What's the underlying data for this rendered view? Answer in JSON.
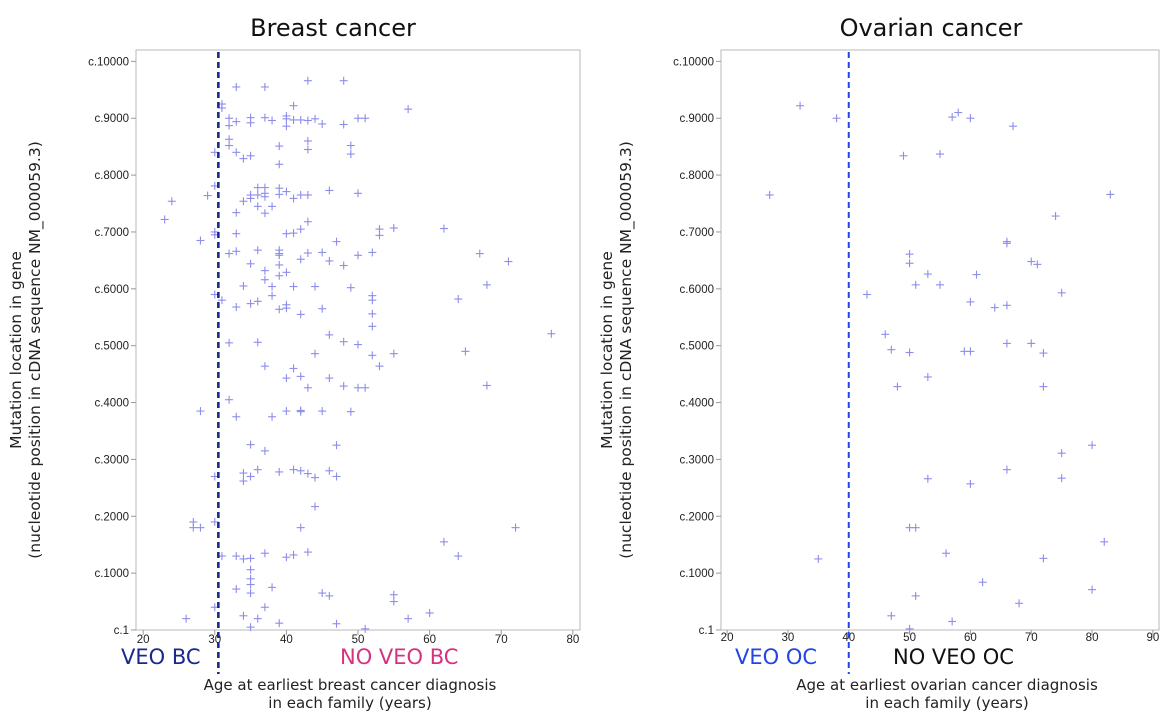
{
  "chart_data": [
    {
      "type": "scatter",
      "title": "Breast cancer",
      "ylabel_line1": "Mutation location in gene",
      "ylabel_line2": "(nucleotide position in cDNA sequence NM_000059.3)",
      "xlabel_line1": "Age at earliest breast cancer diagnosis",
      "xlabel_line2": "in each family (years)",
      "xlim": [
        19,
        81
      ],
      "ylim": [
        0,
        10200
      ],
      "xticks": [
        20,
        30,
        40,
        50,
        60,
        70,
        80
      ],
      "xtick_labels": [
        "20",
        "30",
        "40",
        "50",
        "60",
        "70",
        "80"
      ],
      "yticks": [
        1,
        1000,
        2000,
        3000,
        4000,
        5000,
        6000,
        7000,
        8000,
        9000,
        10000
      ],
      "ytick_labels": [
        "c.1",
        "c.1000",
        "c.2000",
        "c.3000",
        "c.4000",
        "c.5000",
        "c.6000",
        "c.7000",
        "c.8000",
        "c.9000",
        "c.10000"
      ],
      "threshold": 30.5,
      "threshold_color": "#1a2a8c",
      "left_region_label": "VEO BC",
      "left_region_color": "#1a2a8c",
      "right_region_label": "NO VEO BC",
      "right_region_color": "#d6337f",
      "marker_color": "#8d8dec",
      "points": [
        [
          23,
          7220
        ],
        [
          24,
          7540
        ],
        [
          26,
          200
        ],
        [
          27,
          1800
        ],
        [
          27,
          1900
        ],
        [
          28,
          3850
        ],
        [
          28,
          6850
        ],
        [
          28,
          1800
        ],
        [
          29,
          7640
        ],
        [
          30,
          8400
        ],
        [
          30,
          7000
        ],
        [
          30,
          6950
        ],
        [
          30,
          7810
        ],
        [
          30,
          5900
        ],
        [
          30,
          2700
        ],
        [
          30,
          1900
        ],
        [
          30,
          400
        ],
        [
          31,
          9250
        ],
        [
          31,
          9180
        ],
        [
          31,
          5800
        ],
        [
          31,
          1300
        ],
        [
          32,
          8870
        ],
        [
          32,
          8630
        ],
        [
          32,
          9000
        ],
        [
          32,
          8520
        ],
        [
          32,
          6620
        ],
        [
          32,
          5050
        ],
        [
          32,
          4050
        ],
        [
          33,
          9550
        ],
        [
          33,
          8940
        ],
        [
          33,
          8400
        ],
        [
          33,
          7340
        ],
        [
          33,
          6660
        ],
        [
          33,
          6970
        ],
        [
          33,
          5680
        ],
        [
          33,
          3750
        ],
        [
          33,
          1300
        ],
        [
          33,
          720
        ],
        [
          34,
          8290
        ],
        [
          34,
          7540
        ],
        [
          34,
          6050
        ],
        [
          34,
          2760
        ],
        [
          34,
          2620
        ],
        [
          34,
          1250
        ],
        [
          34,
          250
        ],
        [
          35,
          9010
        ],
        [
          35,
          8920
        ],
        [
          35,
          8340
        ],
        [
          35,
          7650
        ],
        [
          35,
          7590
        ],
        [
          35,
          6440
        ],
        [
          35,
          5740
        ],
        [
          35,
          3260
        ],
        [
          35,
          2700
        ],
        [
          35,
          1260
        ],
        [
          35,
          1060
        ],
        [
          35,
          900
        ],
        [
          35,
          800
        ],
        [
          35,
          650
        ],
        [
          35,
          50
        ],
        [
          36,
          7650
        ],
        [
          36,
          7780
        ],
        [
          36,
          7450
        ],
        [
          36,
          6680
        ],
        [
          36,
          5780
        ],
        [
          36,
          5060
        ],
        [
          36,
          2820
        ],
        [
          36,
          200
        ],
        [
          37,
          9550
        ],
        [
          37,
          9010
        ],
        [
          37,
          7780
        ],
        [
          37,
          7680
        ],
        [
          37,
          7620
        ],
        [
          37,
          7330
        ],
        [
          37,
          6320
        ],
        [
          37,
          6160
        ],
        [
          37,
          4640
        ],
        [
          37,
          3150
        ],
        [
          37,
          1350
        ],
        [
          37,
          400
        ],
        [
          38,
          8960
        ],
        [
          38,
          7450
        ],
        [
          38,
          6040
        ],
        [
          38,
          5880
        ],
        [
          38,
          3750
        ],
        [
          38,
          750
        ],
        [
          39,
          8510
        ],
        [
          39,
          8190
        ],
        [
          39,
          7770
        ],
        [
          39,
          7660
        ],
        [
          39,
          6680
        ],
        [
          39,
          6620
        ],
        [
          39,
          6590
        ],
        [
          39,
          6420
        ],
        [
          39,
          6230
        ],
        [
          39,
          5640
        ],
        [
          39,
          2780
        ],
        [
          39,
          120
        ],
        [
          40,
          9040
        ],
        [
          40,
          8990
        ],
        [
          40,
          8860
        ],
        [
          40,
          7710
        ],
        [
          40,
          6970
        ],
        [
          40,
          6290
        ],
        [
          40,
          5720
        ],
        [
          40,
          5660
        ],
        [
          40,
          4430
        ],
        [
          40,
          3850
        ],
        [
          40,
          1280
        ],
        [
          41,
          9220
        ],
        [
          41,
          8970
        ],
        [
          41,
          7590
        ],
        [
          41,
          6980
        ],
        [
          41,
          6040
        ],
        [
          41,
          4600
        ],
        [
          41,
          2820
        ],
        [
          41,
          1320
        ],
        [
          42,
          8970
        ],
        [
          42,
          7650
        ],
        [
          42,
          7050
        ],
        [
          42,
          6520
        ],
        [
          42,
          5550
        ],
        [
          42,
          4460
        ],
        [
          42,
          3860
        ],
        [
          42,
          3840
        ],
        [
          42,
          2800
        ],
        [
          42,
          1800
        ],
        [
          43,
          9660
        ],
        [
          43,
          8960
        ],
        [
          43,
          8600
        ],
        [
          43,
          8450
        ],
        [
          43,
          7650
        ],
        [
          43,
          7180
        ],
        [
          43,
          6630
        ],
        [
          43,
          4260
        ],
        [
          43,
          2750
        ],
        [
          43,
          1370
        ],
        [
          44,
          8990
        ],
        [
          44,
          6040
        ],
        [
          44,
          4860
        ],
        [
          44,
          2680
        ],
        [
          44,
          2170
        ],
        [
          45,
          8900
        ],
        [
          45,
          6640
        ],
        [
          45,
          5650
        ],
        [
          45,
          3850
        ],
        [
          45,
          650
        ],
        [
          46,
          7730
        ],
        [
          46,
          6490
        ],
        [
          46,
          5190
        ],
        [
          46,
          4430
        ],
        [
          46,
          2800
        ],
        [
          46,
          600
        ],
        [
          47,
          6830
        ],
        [
          47,
          3250
        ],
        [
          47,
          2700
        ],
        [
          47,
          110
        ],
        [
          48,
          9660
        ],
        [
          48,
          8890
        ],
        [
          48,
          6410
        ],
        [
          48,
          5070
        ],
        [
          48,
          4290
        ],
        [
          49,
          8520
        ],
        [
          49,
          8370
        ],
        [
          49,
          6020
        ],
        [
          49,
          3840
        ],
        [
          50,
          9000
        ],
        [
          50,
          7680
        ],
        [
          50,
          6590
        ],
        [
          50,
          5020
        ],
        [
          50,
          4260
        ],
        [
          51,
          9000
        ],
        [
          51,
          4260
        ],
        [
          51,
          20
        ],
        [
          52,
          6640
        ],
        [
          52,
          5880
        ],
        [
          52,
          5800
        ],
        [
          52,
          5560
        ],
        [
          52,
          5340
        ],
        [
          52,
          4830
        ],
        [
          53,
          7050
        ],
        [
          53,
          6940
        ],
        [
          53,
          4640
        ],
        [
          55,
          7070
        ],
        [
          55,
          4860
        ],
        [
          55,
          620
        ],
        [
          55,
          500
        ],
        [
          57,
          9160
        ],
        [
          57,
          200
        ],
        [
          60,
          300
        ],
        [
          62,
          7060
        ],
        [
          62,
          1550
        ],
        [
          64,
          5820
        ],
        [
          64,
          1300
        ],
        [
          65,
          4900
        ],
        [
          67,
          6620
        ],
        [
          68,
          6070
        ],
        [
          68,
          4300
        ],
        [
          71,
          6480
        ],
        [
          72,
          1800
        ],
        [
          77,
          5210
        ]
      ]
    },
    {
      "type": "scatter",
      "title": "Ovarian cancer",
      "ylabel_line1": "Mutation location in gene",
      "ylabel_line2": "(nucleotide position in cDNA sequence NM_000059.3)",
      "xlabel_line1": "Age at earliest ovarian cancer diagnosis",
      "xlabel_line2": "in each family (years)",
      "xlim": [
        19,
        91
      ],
      "ylim": [
        0,
        10200
      ],
      "xticks": [
        20,
        30,
        40,
        50,
        60,
        70,
        80,
        90
      ],
      "xtick_labels": [
        "20",
        "30",
        "40",
        "50",
        "60",
        "70",
        "80",
        "90"
      ],
      "yticks": [
        1,
        1000,
        2000,
        3000,
        4000,
        5000,
        6000,
        7000,
        8000,
        9000,
        10000
      ],
      "ytick_labels": [
        "c.1",
        "c.1000",
        "c.2000",
        "c.3000",
        "c.4000",
        "c.5000",
        "c.6000",
        "c.7000",
        "c.8000",
        "c.9000",
        "c.10000"
      ],
      "threshold": 40,
      "threshold_color": "#2345e0",
      "left_region_label": "VEO OC",
      "left_region_color": "#2345e0",
      "right_region_label": "NO VEO OC",
      "right_region_color": "#111111",
      "marker_color": "#8d8dec",
      "points": [
        [
          27,
          7650
        ],
        [
          32,
          9220
        ],
        [
          35,
          1250
        ],
        [
          38,
          9000
        ],
        [
          43,
          5900
        ],
        [
          46,
          5200
        ],
        [
          47,
          4930
        ],
        [
          47,
          250
        ],
        [
          48,
          4280
        ],
        [
          49,
          8340
        ],
        [
          50,
          6610
        ],
        [
          50,
          6450
        ],
        [
          50,
          4880
        ],
        [
          50,
          1800
        ],
        [
          50,
          20
        ],
        [
          51,
          6070
        ],
        [
          51,
          1800
        ],
        [
          51,
          600
        ],
        [
          53,
          6260
        ],
        [
          53,
          4450
        ],
        [
          53,
          2660
        ],
        [
          55,
          8370
        ],
        [
          55,
          6070
        ],
        [
          56,
          1350
        ],
        [
          57,
          9020
        ],
        [
          57,
          150
        ],
        [
          58,
          9100
        ],
        [
          59,
          4900
        ],
        [
          60,
          9000
        ],
        [
          60,
          5770
        ],
        [
          60,
          4900
        ],
        [
          60,
          2570
        ],
        [
          61,
          6250
        ],
        [
          62,
          840
        ],
        [
          64,
          5670
        ],
        [
          66,
          6830
        ],
        [
          66,
          6800
        ],
        [
          66,
          5710
        ],
        [
          66,
          5040
        ],
        [
          66,
          2820
        ],
        [
          67,
          8860
        ],
        [
          68,
          470
        ],
        [
          70,
          6480
        ],
        [
          70,
          5040
        ],
        [
          71,
          6430
        ],
        [
          72,
          4870
        ],
        [
          72,
          4280
        ],
        [
          72,
          1260
        ],
        [
          74,
          7280
        ],
        [
          75,
          5930
        ],
        [
          75,
          3110
        ],
        [
          75,
          2670
        ],
        [
          80,
          3250
        ],
        [
          80,
          710
        ],
        [
          82,
          1550
        ],
        [
          83,
          7660
        ]
      ]
    }
  ]
}
